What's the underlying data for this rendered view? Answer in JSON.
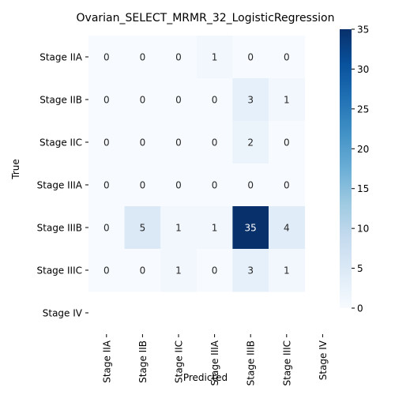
{
  "chart_data": {
    "type": "heatmap",
    "title": "Ovarian_SELECT_MRMR_32_LogisticRegression",
    "xlabel": "Predicted",
    "ylabel": "True",
    "row_labels": [
      "Stage IIA",
      "Stage IIB",
      "Stage IIC",
      "Stage IIIA",
      "Stage IIIB",
      "Stage IIIC",
      "Stage IV"
    ],
    "col_labels": [
      "Stage IIA",
      "Stage IIB",
      "Stage IIC",
      "Stage IIIA",
      "Stage IIIB",
      "Stage IIIC",
      "Stage IV"
    ],
    "values": [
      [
        0,
        0,
        0,
        1,
        0,
        0,
        null
      ],
      [
        0,
        0,
        0,
        0,
        3,
        1,
        null
      ],
      [
        0,
        0,
        0,
        0,
        2,
        0,
        null
      ],
      [
        0,
        0,
        0,
        0,
        0,
        0,
        null
      ],
      [
        0,
        5,
        1,
        1,
        35,
        4,
        null
      ],
      [
        0,
        0,
        1,
        0,
        3,
        1,
        null
      ],
      [
        null,
        null,
        null,
        null,
        null,
        null,
        null
      ]
    ],
    "colorbar": {
      "min": 0,
      "max": 35,
      "ticks": [
        0,
        5,
        10,
        15,
        20,
        25,
        30,
        35
      ],
      "colormap": "Blues",
      "low_color": "#f7fbff",
      "high_color": "#08306b"
    }
  }
}
